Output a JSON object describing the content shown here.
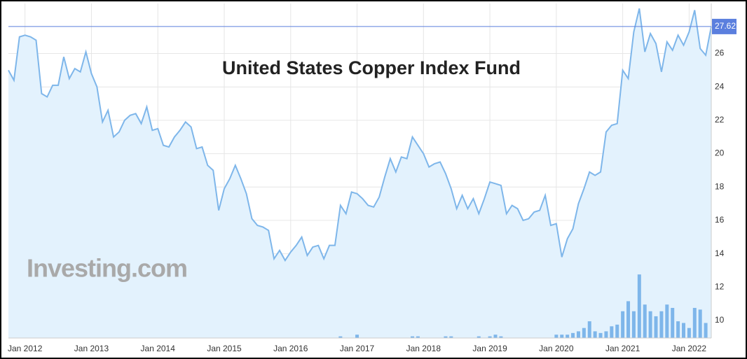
{
  "chart_data": {
    "type": "line",
    "title": "United States Copper Index Fund",
    "watermark": "Investing.com",
    "x": [
      "2011-10",
      "2011-11",
      "2011-12",
      "2012-01",
      "2012-02",
      "2012-03",
      "2012-04",
      "2012-05",
      "2012-06",
      "2012-07",
      "2012-08",
      "2012-09",
      "2012-10",
      "2012-11",
      "2012-12",
      "2013-01",
      "2013-02",
      "2013-03",
      "2013-04",
      "2013-05",
      "2013-06",
      "2013-07",
      "2013-08",
      "2013-09",
      "2013-10",
      "2013-11",
      "2013-12",
      "2014-01",
      "2014-02",
      "2014-03",
      "2014-04",
      "2014-05",
      "2014-06",
      "2014-07",
      "2014-08",
      "2014-09",
      "2014-10",
      "2014-11",
      "2014-12",
      "2015-01",
      "2015-02",
      "2015-03",
      "2015-04",
      "2015-05",
      "2015-06",
      "2015-07",
      "2015-08",
      "2015-09",
      "2015-10",
      "2015-11",
      "2015-12",
      "2016-01",
      "2016-02",
      "2016-03",
      "2016-04",
      "2016-05",
      "2016-06",
      "2016-07",
      "2016-08",
      "2016-09",
      "2016-10",
      "2016-11",
      "2016-12",
      "2017-01",
      "2017-02",
      "2017-03",
      "2017-04",
      "2017-05",
      "2017-06",
      "2017-07",
      "2017-08",
      "2017-09",
      "2017-10",
      "2017-11",
      "2017-12",
      "2018-01",
      "2018-02",
      "2018-03",
      "2018-04",
      "2018-05",
      "2018-06",
      "2018-07",
      "2018-08",
      "2018-09",
      "2018-10",
      "2018-11",
      "2018-12",
      "2019-01",
      "2019-02",
      "2019-03",
      "2019-04",
      "2019-05",
      "2019-06",
      "2019-07",
      "2019-08",
      "2019-09",
      "2019-10",
      "2019-11",
      "2019-12",
      "2020-01",
      "2020-02",
      "2020-03",
      "2020-04",
      "2020-05",
      "2020-06",
      "2020-07",
      "2020-08",
      "2020-09",
      "2020-10",
      "2020-11",
      "2020-12",
      "2021-01",
      "2021-02",
      "2021-03",
      "2021-04",
      "2021-05",
      "2021-06",
      "2021-07",
      "2021-08",
      "2021-09",
      "2021-10",
      "2021-11",
      "2021-12",
      "2022-01",
      "2022-02",
      "2022-03",
      "2022-04",
      "2022-05"
    ],
    "series": [
      {
        "color": "#7eb6ea",
        "fill": "#e3f2fd",
        "values": [
          25.0,
          24.4,
          27.0,
          27.1,
          27.0,
          26.8,
          23.6,
          23.4,
          24.1,
          24.1,
          25.8,
          24.5,
          25.1,
          24.9,
          26.1,
          24.8,
          24.0,
          21.9,
          22.6,
          21.0,
          21.3,
          22.0,
          22.3,
          22.4,
          21.8,
          22.8,
          21.4,
          21.5,
          20.5,
          20.4,
          21.0,
          21.4,
          21.9,
          21.6,
          20.3,
          20.4,
          19.3,
          19.0,
          16.6,
          17.9,
          18.5,
          19.3,
          18.5,
          17.6,
          16.1,
          15.7,
          15.6,
          15.4,
          13.7,
          14.2,
          13.6,
          14.1,
          14.5,
          15.0,
          13.9,
          14.4,
          14.5,
          13.7,
          14.5,
          14.5,
          16.9,
          16.4,
          17.7,
          17.6,
          17.3,
          16.9,
          16.8,
          17.4,
          18.6,
          19.7,
          18.9,
          19.8,
          19.7,
          21.0,
          20.5,
          20.0,
          19.2,
          19.4,
          19.5,
          18.8,
          17.9,
          16.7,
          17.5,
          16.7,
          17.3,
          16.4,
          17.3,
          18.3,
          18.2,
          18.1,
          16.4,
          16.9,
          16.7,
          16.0,
          16.1,
          16.5,
          16.6,
          17.5,
          15.7,
          15.8,
          13.8,
          14.9,
          15.5,
          17.0,
          17.9,
          18.9,
          18.7,
          18.9,
          21.3,
          21.7,
          21.8,
          25.0,
          24.5,
          27.3,
          28.7,
          26.1,
          27.2,
          26.6,
          24.9,
          26.7,
          26.2,
          27.1,
          26.5,
          27.3,
          28.6,
          26.3,
          25.9,
          27.62
        ]
      },
      {
        "type": "bar",
        "axis": "y2",
        "color": "#7eb6ea",
        "values": [
          0,
          0,
          0,
          0,
          0,
          0,
          0,
          0,
          0,
          0,
          0,
          0,
          0,
          0,
          0,
          0,
          0,
          0,
          0,
          0,
          0,
          0,
          0,
          0,
          0,
          0,
          0,
          0,
          0,
          0,
          0,
          0,
          0,
          0,
          0,
          0,
          0,
          0,
          0,
          0,
          0,
          0,
          0,
          0,
          0,
          0,
          0,
          0,
          0,
          0,
          0,
          0,
          0,
          0,
          0,
          0,
          0,
          0,
          0,
          0,
          0.5,
          0,
          0,
          1,
          0,
          0,
          0,
          0,
          0,
          0,
          0,
          0,
          0,
          0.5,
          0.5,
          0,
          0,
          0,
          0,
          0.5,
          0.5,
          0,
          0,
          0,
          0,
          0.5,
          0,
          0.5,
          1,
          0.5,
          0,
          0,
          0,
          0,
          0,
          0,
          0,
          0,
          0,
          1,
          1,
          1,
          1.5,
          2,
          3,
          5,
          2,
          1.5,
          2,
          3.5,
          4,
          8,
          11,
          8,
          19,
          10,
          8,
          6.5,
          8,
          10,
          9,
          5,
          4.5,
          3,
          9,
          8.5,
          4.5,
          0
        ]
      }
    ],
    "xlim": [
      "2011-10",
      "2022-05"
    ],
    "xticks": [
      {
        "value": "2012-01",
        "label": "Jan 2012"
      },
      {
        "value": "2013-01",
        "label": "Jan 2013"
      },
      {
        "value": "2014-01",
        "label": "Jan 2014"
      },
      {
        "value": "2015-01",
        "label": "Jan 2015"
      },
      {
        "value": "2016-01",
        "label": "Jan 2016"
      },
      {
        "value": "2017-01",
        "label": "Jan 2017"
      },
      {
        "value": "2018-01",
        "label": "Jan 2018"
      },
      {
        "value": "2019-01",
        "label": "Jan 2019"
      },
      {
        "value": "2020-01",
        "label": "Jan 2020"
      },
      {
        "value": "2021-01",
        "label": "Jan 2021"
      },
      {
        "value": "2022-01",
        "label": "Jan 2022"
      }
    ],
    "ylim": [
      8.95,
      29.0
    ],
    "yticks": [
      10,
      12,
      14,
      16,
      18,
      20,
      22,
      24,
      26
    ],
    "y2lim": [
      0,
      100
    ],
    "grid": true,
    "last_price_color": "#5b7fde"
  }
}
